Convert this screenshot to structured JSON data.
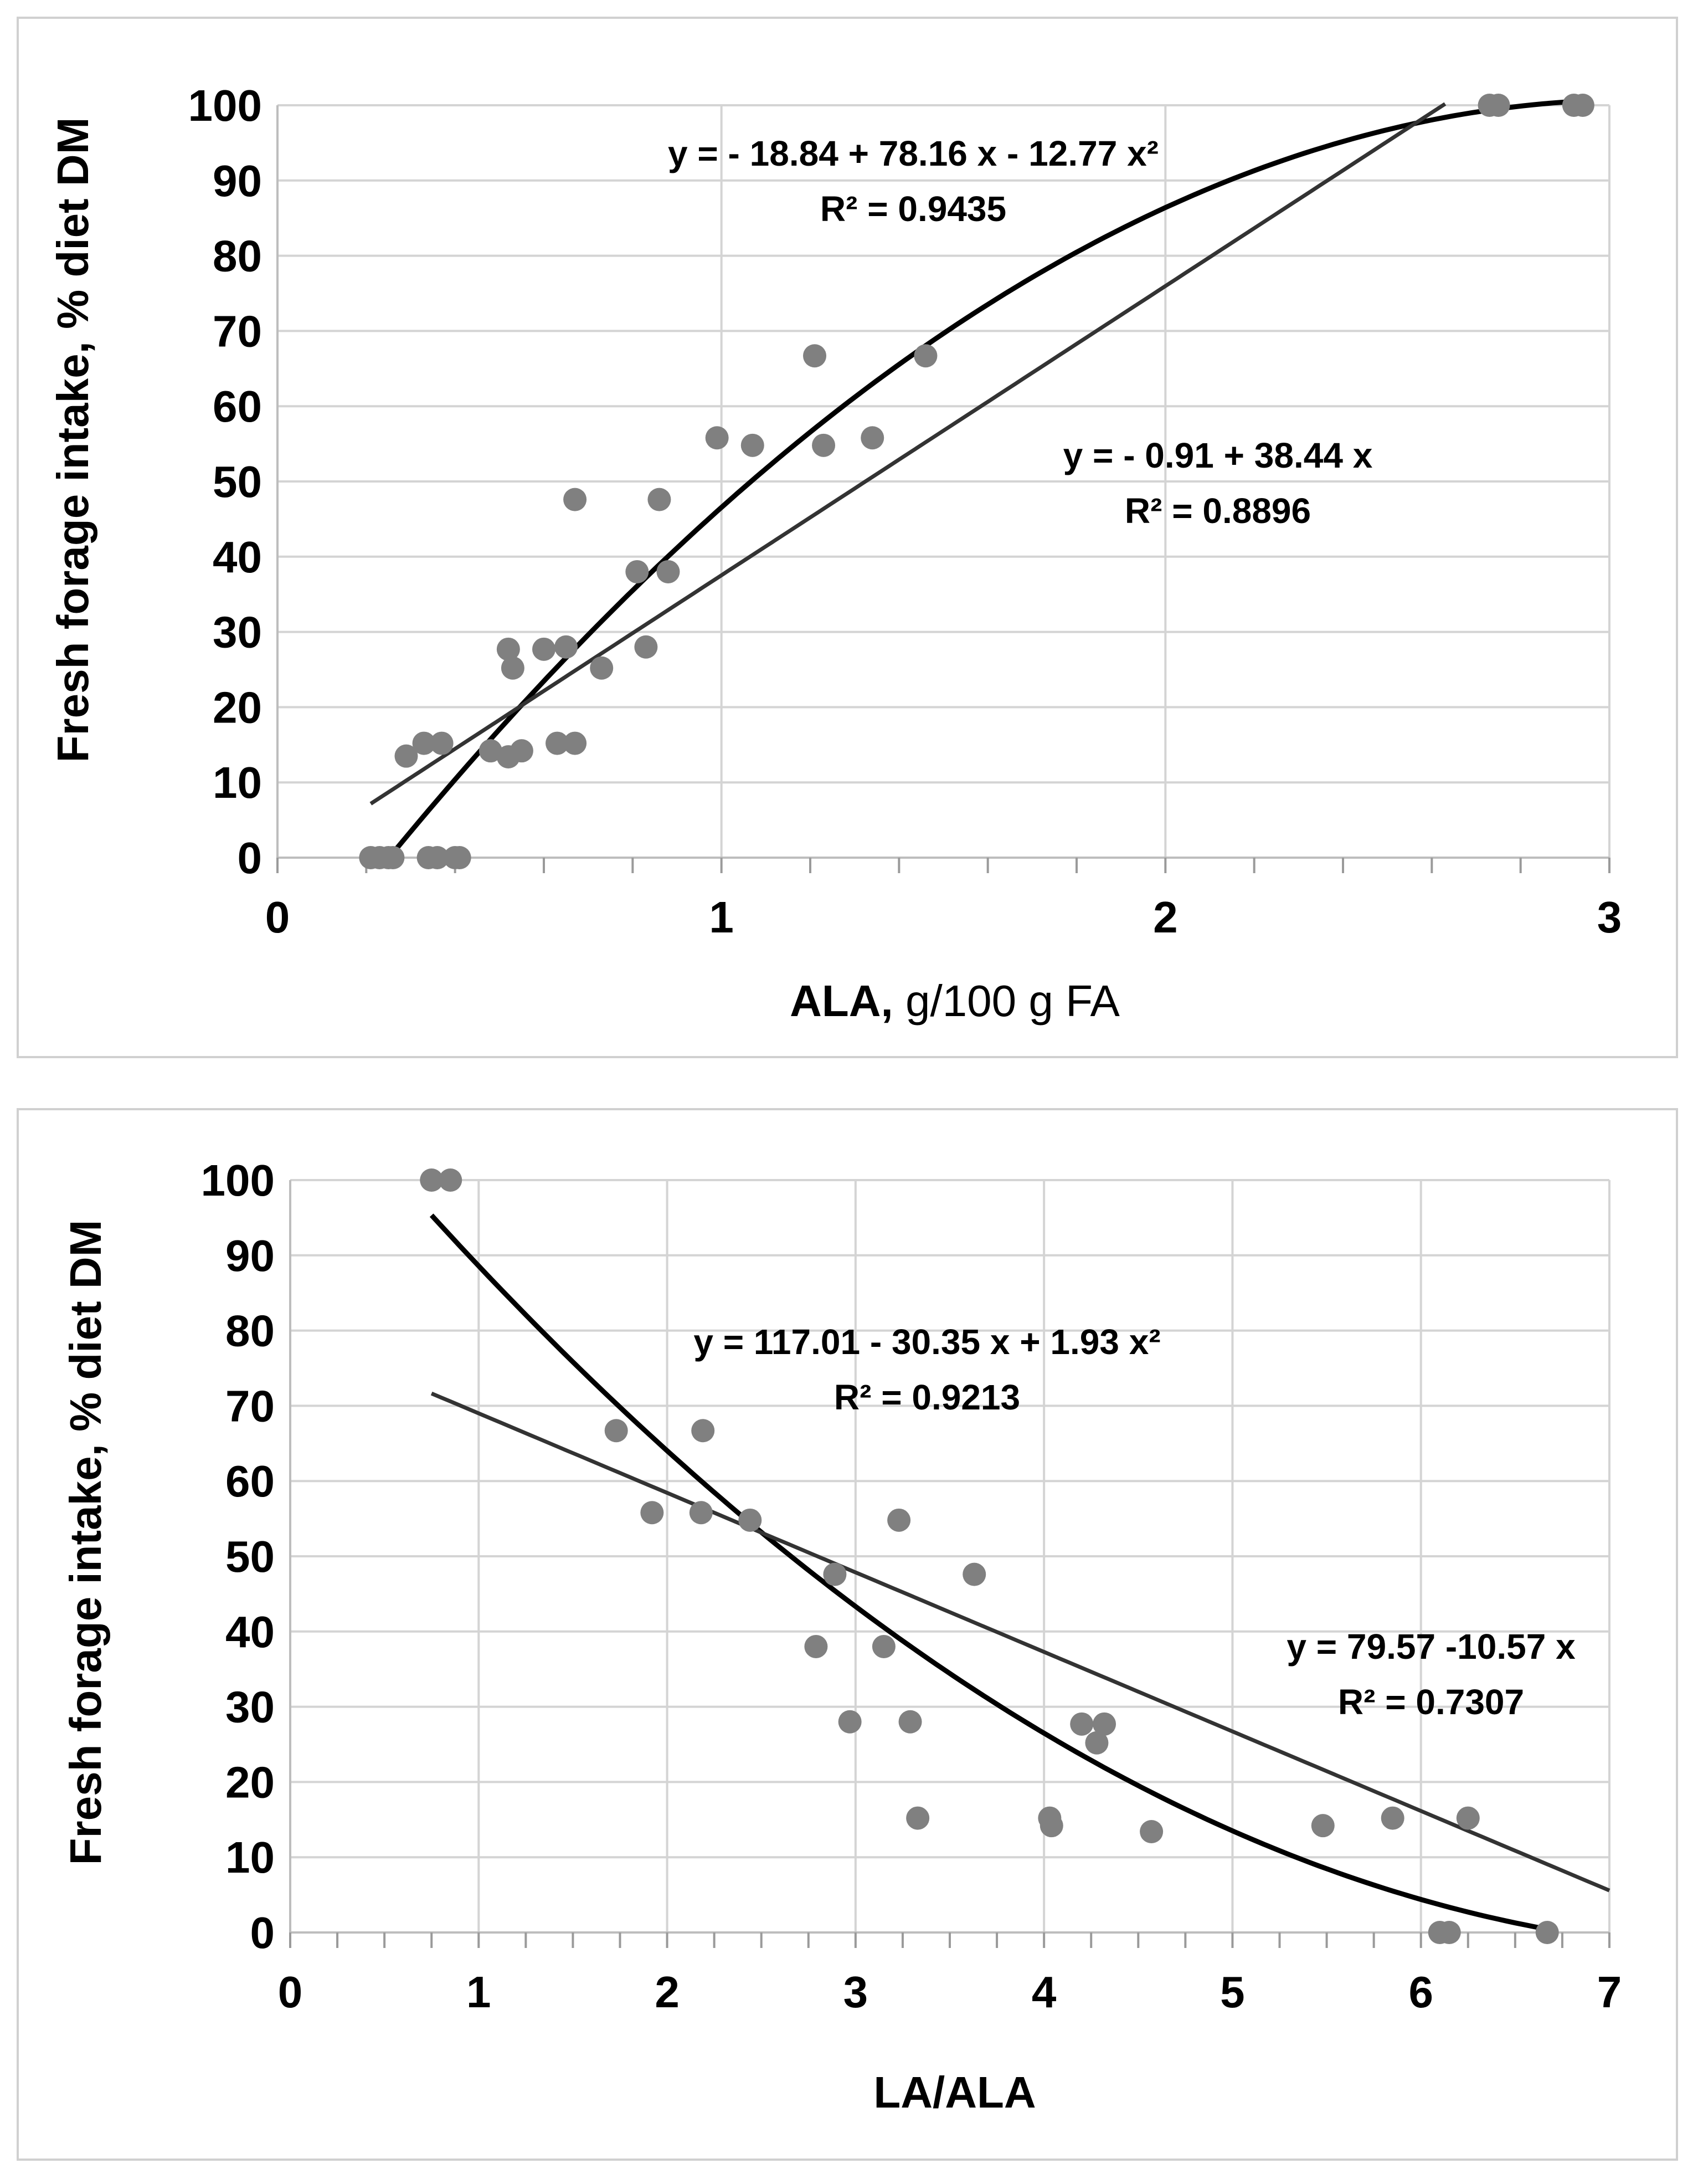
{
  "chart_data": [
    {
      "type": "scatter",
      "title": "",
      "xlabel_bold": "ALA,",
      "xlabel_rest": " g/100 g FA",
      "ylabel": "Fresh forage intake, % diet DM",
      "xlim": [
        0,
        3
      ],
      "ylim": [
        0,
        100
      ],
      "xticks": [
        "0",
        "1",
        "2",
        "3"
      ],
      "yticks": [
        "0",
        "10",
        "20",
        "30",
        "40",
        "50",
        "60",
        "70",
        "80",
        "90",
        "100"
      ],
      "grid": true,
      "points": [
        [
          0.21,
          0
        ],
        [
          0.23,
          0
        ],
        [
          0.25,
          0
        ],
        [
          0.26,
          0
        ],
        [
          0.34,
          0
        ],
        [
          0.36,
          0
        ],
        [
          0.4,
          0
        ],
        [
          0.41,
          0
        ],
        [
          0.29,
          13.5
        ],
        [
          0.33,
          15.2
        ],
        [
          0.37,
          15.2
        ],
        [
          0.48,
          14.2
        ],
        [
          0.52,
          13.4
        ],
        [
          0.55,
          14.2
        ],
        [
          0.52,
          27.7
        ],
        [
          0.53,
          25.2
        ],
        [
          0.6,
          27.7
        ],
        [
          0.63,
          15.2
        ],
        [
          0.65,
          28.0
        ],
        [
          0.67,
          15.2
        ],
        [
          0.73,
          25.2
        ],
        [
          0.81,
          38.0
        ],
        [
          0.83,
          28.0
        ],
        [
          0.86,
          47.6
        ],
        [
          0.88,
          38.0
        ],
        [
          0.67,
          47.6
        ],
        [
          0.99,
          55.8
        ],
        [
          1.07,
          54.8
        ],
        [
          1.21,
          66.7
        ],
        [
          1.23,
          54.8
        ],
        [
          1.34,
          55.8
        ],
        [
          1.46,
          66.7
        ],
        [
          2.73,
          100
        ],
        [
          2.75,
          100
        ],
        [
          2.92,
          100
        ],
        [
          2.94,
          100
        ]
      ],
      "fits": [
        {
          "kind": "quadratic",
          "coef": [
            -18.84,
            78.16,
            -12.77
          ],
          "x_range": [
            0.25,
            2.94
          ],
          "equation": "y = - 18.84 + 78.16 x - 12.77 x²",
          "r2": "R² = 0.9435"
        },
        {
          "kind": "linear",
          "coef": [
            -0.91,
            38.44
          ],
          "x_range": [
            0.21,
            2.63
          ],
          "equation": "y = - 0.91 + 38.44 x",
          "r2": "R² = 0.8896"
        }
      ]
    },
    {
      "type": "scatter",
      "title": "",
      "xlabel": "LA/ALA",
      "ylabel": "Fresh forage intake, % diet DM",
      "xlim": [
        0,
        7
      ],
      "ylim": [
        0,
        100
      ],
      "xticks": [
        "0",
        "1",
        "2",
        "3",
        "4",
        "5",
        "6",
        "7"
      ],
      "yticks": [
        "0",
        "10",
        "20",
        "30",
        "40",
        "50",
        "60",
        "70",
        "80",
        "90",
        "100"
      ],
      "grid": true,
      "points": [
        [
          0.75,
          100
        ],
        [
          0.85,
          100
        ],
        [
          1.73,
          66.7
        ],
        [
          2.19,
          66.7
        ],
        [
          1.92,
          55.8
        ],
        [
          2.18,
          55.8
        ],
        [
          2.44,
          54.8
        ],
        [
          3.23,
          54.8
        ],
        [
          2.89,
          47.6
        ],
        [
          3.63,
          47.6
        ],
        [
          2.79,
          38.0
        ],
        [
          3.15,
          38.0
        ],
        [
          2.97,
          28.0
        ],
        [
          3.29,
          28.0
        ],
        [
          4.2,
          27.7
        ],
        [
          4.32,
          27.7
        ],
        [
          4.28,
          25.2
        ],
        [
          3.33,
          15.2
        ],
        [
          4.03,
          15.2
        ],
        [
          4.04,
          14.2
        ],
        [
          4.57,
          13.4
        ],
        [
          5.48,
          14.2
        ],
        [
          5.85,
          15.2
        ],
        [
          6.25,
          15.2
        ],
        [
          6.1,
          0
        ],
        [
          6.15,
          0
        ],
        [
          6.67,
          0
        ]
      ],
      "fits": [
        {
          "kind": "quadratic",
          "coef": [
            117.01,
            -30.35,
            1.93
          ],
          "x_range": [
            0.75,
            6.7
          ],
          "equation": "y = 117.01 - 30.35 x + 1.93 x²",
          "r2": "R² = 0.9213"
        },
        {
          "kind": "linear",
          "coef": [
            79.57,
            -10.57
          ],
          "x_range": [
            0.75,
            7.0
          ],
          "equation": "y = 79.57 -10.57 x",
          "r2": "R² = 0.7307"
        }
      ]
    }
  ]
}
